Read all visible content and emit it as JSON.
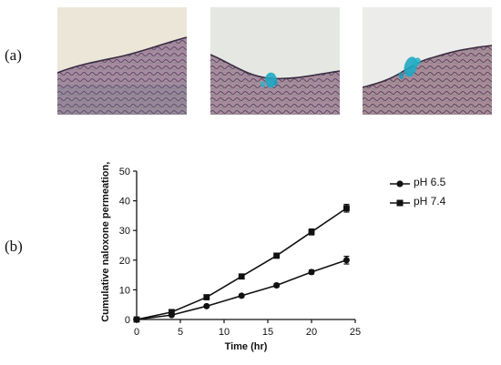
{
  "panel_labels": {
    "a": "(a)",
    "b": "(b)"
  },
  "micrographs": [
    {
      "name": "micrograph-control",
      "stain": "none"
    },
    {
      "name": "micrograph-ph-6-5",
      "stain": "blue"
    },
    {
      "name": "micrograph-ph-7-4",
      "stain": "blue"
    }
  ],
  "colors": {
    "background_sky": "#e8e2d4",
    "tissue": "#8c6f8a",
    "tissue_dark": "#3f3248",
    "stain": "#1fa8c4",
    "chart_line": "#111111"
  },
  "chart_data": {
    "type": "line",
    "title": "",
    "xlabel": "Time (hr)",
    "ylabel": "Cumulative naloxone permeation, μg",
    "xlim": [
      0,
      25
    ],
    "ylim": [
      0,
      50
    ],
    "xticks": [
      0,
      5,
      10,
      15,
      20,
      25
    ],
    "yticks": [
      0,
      10,
      20,
      30,
      40,
      50
    ],
    "grid": false,
    "legend_position": "right",
    "x": [
      0,
      4,
      8,
      12,
      16,
      20,
      24
    ],
    "series": [
      {
        "name": "pH 6.5",
        "marker": "circle",
        "values": [
          0,
          1.5,
          4.5,
          8,
          11.5,
          16,
          20
        ],
        "error": [
          0,
          0.3,
          0.4,
          0.5,
          0.6,
          0.7,
          1.3
        ]
      },
      {
        "name": "pH 7.4",
        "marker": "square",
        "values": [
          0,
          2.5,
          7.5,
          14.5,
          21.5,
          29.5,
          37.5
        ],
        "error": [
          0,
          0.3,
          0.5,
          0.6,
          0.8,
          1.0,
          1.3
        ]
      }
    ]
  }
}
